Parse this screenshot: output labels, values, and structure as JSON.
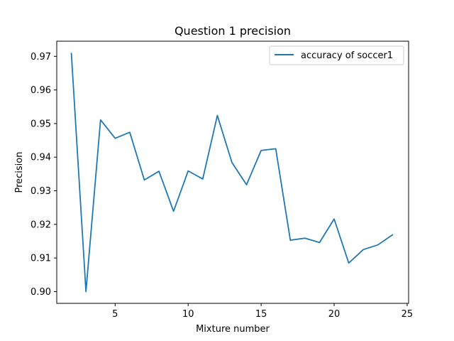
{
  "chart_data": {
    "type": "line",
    "title": "Question 1  precision",
    "xlabel": "Mixture number",
    "ylabel": "Precision",
    "xlim": [
      1.0,
      25.1
    ],
    "ylim": [
      0.8965,
      0.9745
    ],
    "xticks": [
      5,
      10,
      15,
      20,
      25
    ],
    "xtick_labels": [
      "5",
      "10",
      "15",
      "20",
      "25"
    ],
    "yticks": [
      0.9,
      0.91,
      0.92,
      0.93,
      0.94,
      0.95,
      0.96,
      0.97
    ],
    "ytick_labels": [
      "0.90",
      "0.91",
      "0.92",
      "0.93",
      "0.94",
      "0.95",
      "0.96",
      "0.97"
    ],
    "grid": false,
    "legend_position": "upper right",
    "x": [
      2,
      3,
      4,
      5,
      6,
      7,
      8,
      9,
      10,
      11,
      12,
      13,
      14,
      15,
      16,
      17,
      18,
      19,
      20,
      21,
      22,
      23,
      24
    ],
    "series": [
      {
        "name": "accuracy of soccer1",
        "color": "#1f77b4",
        "values": [
          0.9709,
          0.9,
          0.9511,
          0.9456,
          0.9474,
          0.9332,
          0.9358,
          0.9239,
          0.9359,
          0.9335,
          0.9524,
          0.9384,
          0.9318,
          0.942,
          0.9425,
          0.9153,
          0.9159,
          0.9146,
          0.9216,
          0.9085,
          0.9125,
          0.9139,
          0.9169
        ]
      }
    ]
  }
}
